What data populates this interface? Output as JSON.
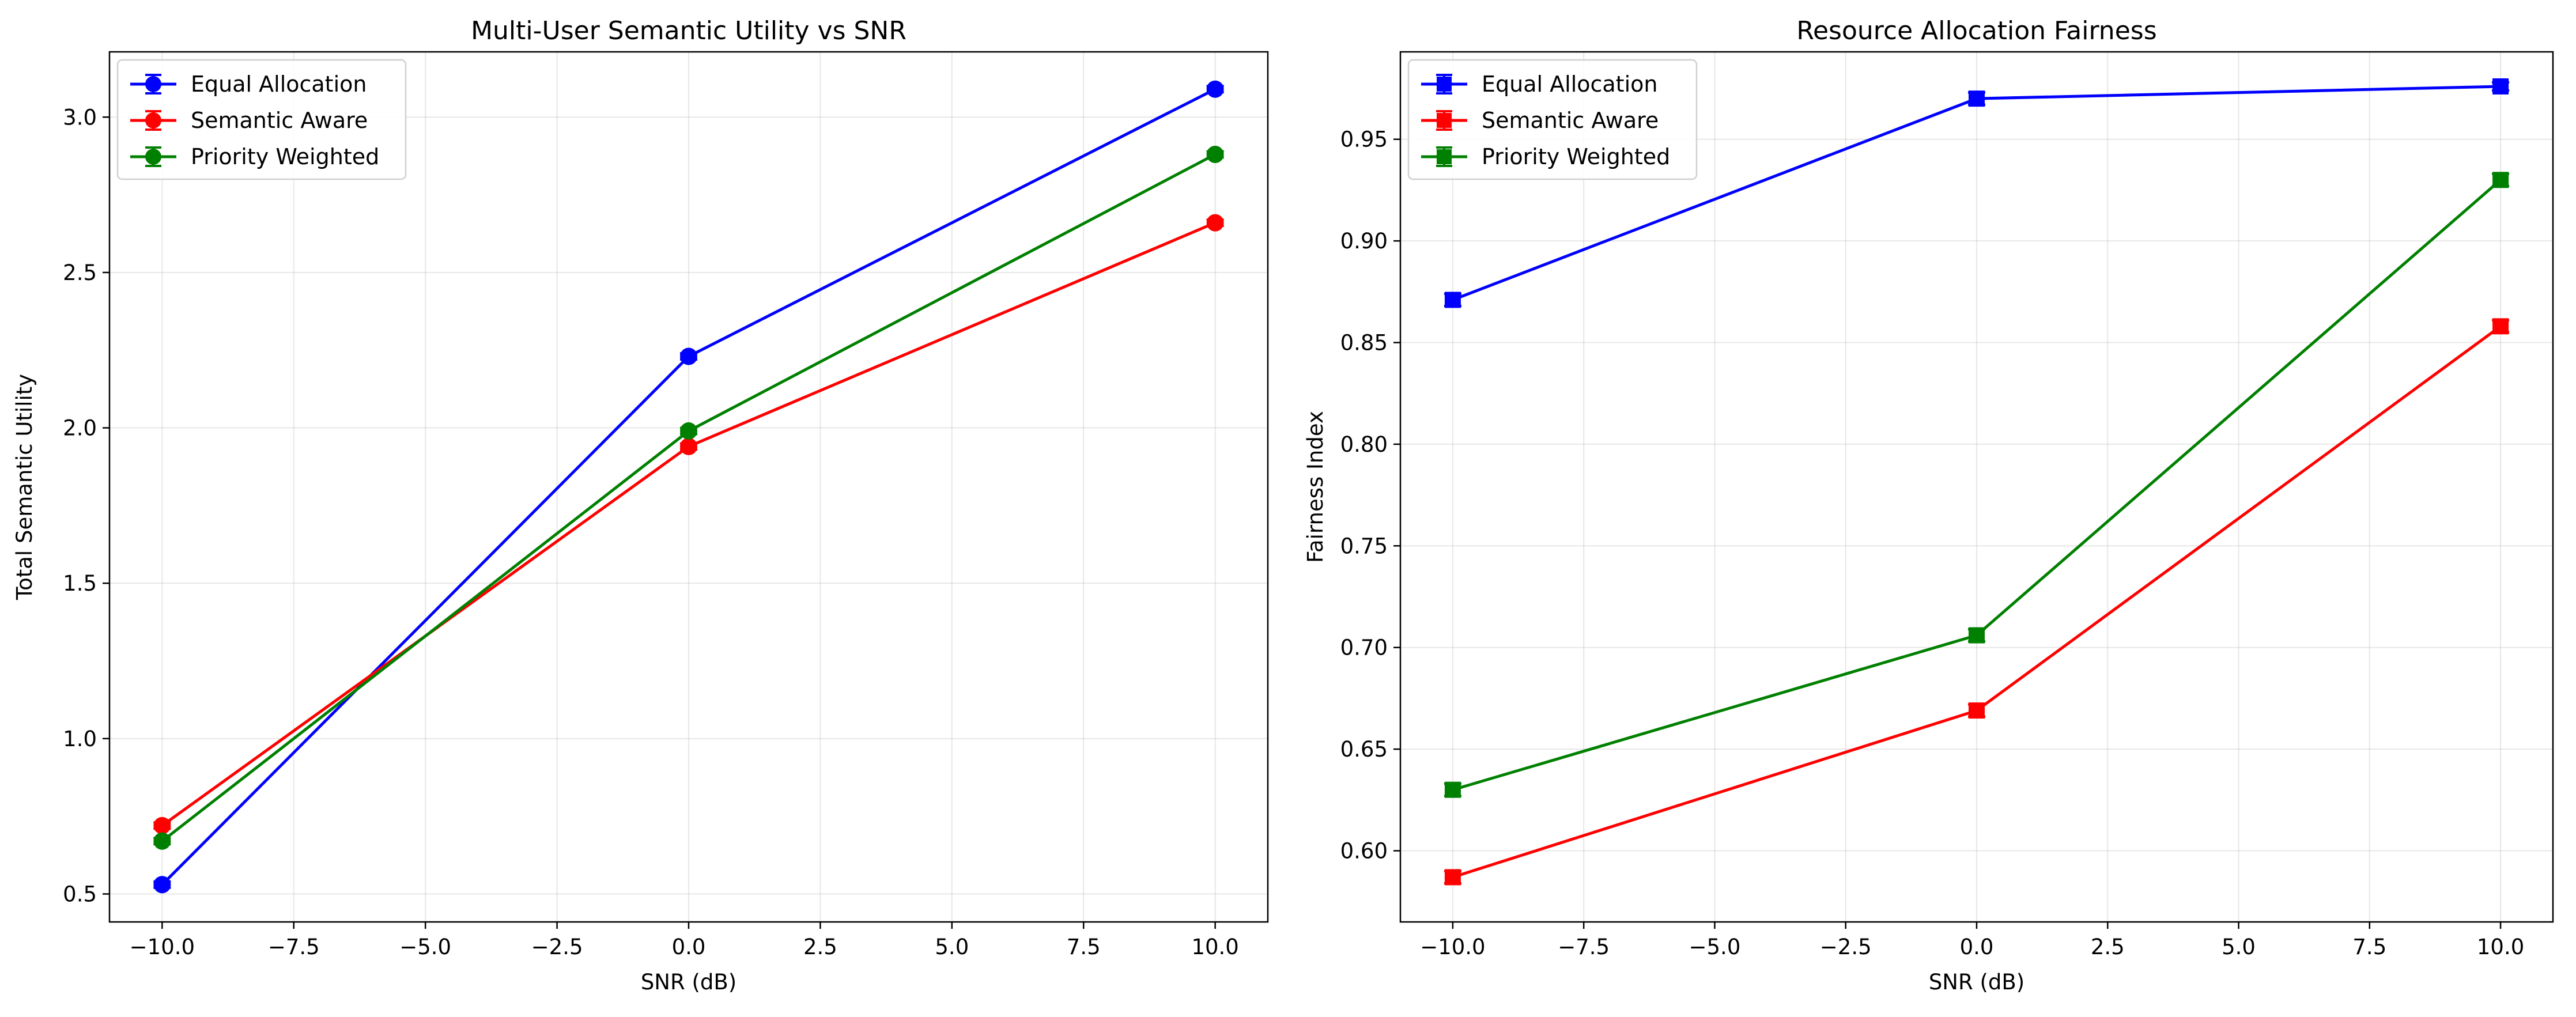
{
  "chart_data": [
    {
      "type": "line",
      "title": "Multi-User Semantic Utility vs SNR",
      "xlabel": "SNR (dB)",
      "ylabel": "Total Semantic Utility",
      "x": [
        -10,
        0,
        10
      ],
      "xlim": [
        -11,
        11
      ],
      "ylim": [
        0.41,
        3.21
      ],
      "xticks": [
        -10,
        -7.5,
        -5,
        -2.5,
        0,
        2.5,
        5,
        7.5,
        10
      ],
      "xtick_labels": [
        "−10.0",
        "−7.5",
        "−5.0",
        "−2.5",
        "0.0",
        "2.5",
        "5.0",
        "7.5",
        "10.0"
      ],
      "yticks": [
        0.5,
        1.0,
        1.5,
        2.0,
        2.5,
        3.0
      ],
      "ytick_labels": [
        "0.5",
        "1.0",
        "1.5",
        "2.0",
        "2.5",
        "3.0"
      ],
      "grid": true,
      "legend": "top-left",
      "marker": "circle",
      "series": [
        {
          "name": "Equal Allocation",
          "color": "#0000ff",
          "values": [
            0.53,
            2.23,
            3.09
          ],
          "err": [
            0.01,
            0.01,
            0.01
          ]
        },
        {
          "name": "Semantic Aware",
          "color": "#ff0000",
          "values": [
            0.72,
            1.94,
            2.66
          ],
          "err": [
            0.01,
            0.01,
            0.01
          ]
        },
        {
          "name": "Priority Weighted",
          "color": "#008000",
          "values": [
            0.67,
            1.99,
            2.88
          ],
          "err": [
            0.01,
            0.01,
            0.01
          ]
        }
      ]
    },
    {
      "type": "line",
      "title": "Resource Allocation Fairness",
      "xlabel": "SNR (dB)",
      "ylabel": "Fairness Index",
      "x": [
        -10,
        0,
        10
      ],
      "xlim": [
        -11,
        11
      ],
      "ylim": [
        0.565,
        0.993
      ],
      "xticks": [
        -10,
        -7.5,
        -5,
        -2.5,
        0,
        2.5,
        5,
        7.5,
        10
      ],
      "xtick_labels": [
        "−10.0",
        "−7.5",
        "−5.0",
        "−2.5",
        "0.0",
        "2.5",
        "5.0",
        "7.5",
        "10.0"
      ],
      "yticks": [
        0.6,
        0.65,
        0.7,
        0.75,
        0.8,
        0.85,
        0.9,
        0.95
      ],
      "ytick_labels": [
        "0.60",
        "0.65",
        "0.70",
        "0.75",
        "0.80",
        "0.85",
        "0.90",
        "0.95"
      ],
      "grid": true,
      "legend": "top-left",
      "marker": "square",
      "series": [
        {
          "name": "Equal Allocation",
          "color": "#0000ff",
          "values": [
            0.871,
            0.97,
            0.976
          ],
          "err": [
            0.003,
            0.003,
            0.002
          ]
        },
        {
          "name": "Semantic Aware",
          "color": "#ff0000",
          "values": [
            0.587,
            0.669,
            0.858
          ],
          "err": [
            0.003,
            0.003,
            0.003
          ]
        },
        {
          "name": "Priority Weighted",
          "color": "#008000",
          "values": [
            0.63,
            0.706,
            0.93
          ],
          "err": [
            0.003,
            0.003,
            0.003
          ]
        }
      ]
    }
  ]
}
